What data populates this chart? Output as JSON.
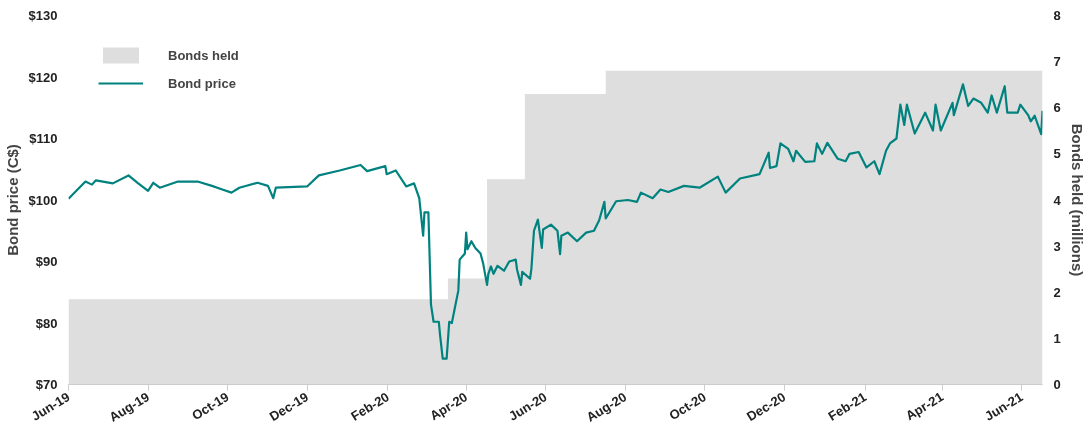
{
  "chart_data": {
    "type": "line",
    "ylabel": "Bond price (C$)",
    "y2label": "Bonds held (millions)",
    "xlim": [
      "2019-06-01",
      "2021-06-17"
    ],
    "xticks": [
      {
        "value": "2019-06-01",
        "label": "Jun-19"
      },
      {
        "value": "2019-08-01",
        "label": "Aug-19"
      },
      {
        "value": "2019-10-01",
        "label": "Oct-19"
      },
      {
        "value": "2019-12-01",
        "label": "Dec-19"
      },
      {
        "value": "2020-02-01",
        "label": "Feb-20"
      },
      {
        "value": "2020-04-01",
        "label": "Apr-20"
      },
      {
        "value": "2020-06-01",
        "label": "Jun-20"
      },
      {
        "value": "2020-08-01",
        "label": "Aug-20"
      },
      {
        "value": "2020-10-01",
        "label": "Oct-20"
      },
      {
        "value": "2020-12-01",
        "label": "Dec-20"
      },
      {
        "value": "2021-02-01",
        "label": "Feb-21"
      },
      {
        "value": "2021-04-01",
        "label": "Apr-21"
      },
      {
        "value": "2021-06-01",
        "label": "Jun-21"
      }
    ],
    "ylim": [
      70,
      130
    ],
    "yticks": [
      {
        "value": 70,
        "label": "$70"
      },
      {
        "value": 80,
        "label": "$80"
      },
      {
        "value": 90,
        "label": "$90"
      },
      {
        "value": 100,
        "label": "$100"
      },
      {
        "value": 110,
        "label": "$110"
      },
      {
        "value": 120,
        "label": "$120"
      },
      {
        "value": 130,
        "label": "$130"
      }
    ],
    "y2lim": [
      0,
      8
    ],
    "y2ticks": [
      0,
      1,
      2,
      3,
      4,
      5,
      6,
      7,
      8
    ],
    "grid": false,
    "legend": "top left",
    "line_style": "solid",
    "series": [
      {
        "name": "Bonds held",
        "type": "area",
        "axis": "y2",
        "color": "#dedede",
        "x": [
          "2019-06-01",
          "2020-03-18",
          "2020-03-18",
          "2020-04-17",
          "2020-04-17",
          "2020-05-16",
          "2020-05-16",
          "2020-07-17",
          "2020-07-17",
          "2021-06-17"
        ],
        "values": [
          1.85,
          1.85,
          2.3,
          2.3,
          4.45,
          4.45,
          6.3,
          6.3,
          6.8,
          6.8
        ]
      },
      {
        "name": "Bond price",
        "color": "#00827f",
        "x": [
          "2019-06-01",
          "2019-06-14",
          "2019-06-19",
          "2019-06-22",
          "2019-07-05",
          "2019-07-17",
          "2019-07-24",
          "2019-08-01",
          "2019-08-05",
          "2019-08-10",
          "2019-08-24",
          "2019-09-08",
          "2019-09-19",
          "2019-09-27",
          "2019-10-04",
          "2019-10-10",
          "2019-10-24",
          "2019-11-01",
          "2019-11-05",
          "2019-11-07",
          "2019-12-01",
          "2019-12-10",
          "2019-12-26",
          "2020-01-11",
          "2020-01-16",
          "2020-01-30",
          "2020-01-31",
          "2020-02-07",
          "2020-02-15",
          "2020-02-21",
          "2020-02-25",
          "2020-02-26",
          "2020-02-28",
          "2020-02-29",
          "2020-03-03",
          "2020-03-05",
          "2020-03-07",
          "2020-03-11",
          "2020-03-12",
          "2020-03-14",
          "2020-03-17",
          "2020-03-19",
          "2020-03-21",
          "2020-03-26",
          "2020-03-27",
          "2020-03-31",
          "2020-04-01",
          "2020-04-02",
          "2020-04-05",
          "2020-04-08",
          "2020-04-12",
          "2020-04-14",
          "2020-04-17",
          "2020-04-18",
          "2020-04-20",
          "2020-04-22",
          "2020-04-25",
          "2020-04-30",
          "2020-05-04",
          "2020-05-09",
          "2020-05-10",
          "2020-05-13",
          "2020-05-14",
          "2020-05-20",
          "2020-05-21",
          "2020-05-23",
          "2020-05-26",
          "2020-05-29",
          "2020-05-30",
          "2020-06-05",
          "2020-06-10",
          "2020-06-12",
          "2020-06-13",
          "2020-06-18",
          "2020-06-25",
          "2020-07-02",
          "2020-07-08",
          "2020-07-12",
          "2020-07-16",
          "2020-07-17",
          "2020-07-25",
          "2020-08-03",
          "2020-08-10",
          "2020-08-13",
          "2020-08-22",
          "2020-08-28",
          "2020-09-03",
          "2020-09-15",
          "2020-09-27",
          "2020-10-11",
          "2020-10-17",
          "2020-10-28",
          "2020-11-12",
          "2020-11-19",
          "2020-11-20",
          "2020-11-25",
          "2020-11-28",
          "2020-12-04",
          "2020-12-08",
          "2020-12-10",
          "2020-12-17",
          "2020-12-24",
          "2020-12-26",
          "2020-12-30",
          "2021-01-03",
          "2021-01-11",
          "2021-01-17",
          "2021-01-20",
          "2021-01-27",
          "2021-02-02",
          "2021-02-08",
          "2021-02-12",
          "2021-02-17",
          "2021-02-20",
          "2021-02-25",
          "2021-02-28",
          "2021-03-03",
          "2021-03-05",
          "2021-03-11",
          "2021-03-19",
          "2021-03-25",
          "2021-03-27",
          "2021-03-31",
          "2021-04-09",
          "2021-04-10",
          "2021-04-17",
          "2021-04-21",
          "2021-04-25",
          "2021-05-01",
          "2021-05-06",
          "2021-05-09",
          "2021-05-13",
          "2021-05-19",
          "2021-05-21",
          "2021-05-29",
          "2021-05-31",
          "2021-06-06",
          "2021-06-08",
          "2021-06-11",
          "2021-06-16",
          "2021-06-17"
        ],
        "values": [
          100.2,
          103.0,
          102.5,
          103.2,
          102.7,
          104.0,
          102.8,
          101.5,
          102.8,
          102.0,
          103.0,
          103.0,
          102.3,
          101.7,
          101.2,
          102.0,
          102.8,
          102.3,
          100.3,
          102.0,
          102.2,
          104.0,
          104.8,
          105.7,
          104.7,
          105.5,
          104.2,
          104.8,
          102.2,
          102.7,
          100.3,
          98.3,
          94.2,
          98.0,
          98.0,
          83.0,
          80.2,
          80.2,
          78.0,
          74.2,
          74.2,
          80.2,
          80.0,
          85.3,
          90.3,
          91.3,
          94.7,
          92.0,
          93.3,
          92.2,
          91.3,
          89.7,
          86.2,
          88.0,
          89.2,
          88.0,
          89.3,
          88.5,
          90.0,
          90.3,
          88.7,
          86.2,
          88.3,
          87.2,
          88.8,
          95.0,
          96.8,
          92.2,
          95.2,
          96.0,
          95.0,
          91.2,
          94.2,
          94.7,
          93.3,
          94.7,
          95.0,
          96.7,
          99.7,
          97.0,
          99.8,
          100.0,
          99.7,
          101.2,
          100.3,
          101.7,
          101.3,
          102.3,
          102.0,
          103.8,
          101.2,
          103.5,
          104.2,
          107.7,
          105.2,
          105.5,
          109.2,
          108.3,
          106.3,
          108.0,
          106.2,
          106.3,
          109.2,
          107.5,
          109.3,
          106.7,
          106.3,
          107.5,
          107.8,
          105.3,
          106.3,
          104.2,
          108.0,
          109.2,
          110.0,
          115.5,
          112.2,
          115.5,
          110.8,
          114.2,
          111.3,
          115.5,
          111.3,
          115.8,
          113.8,
          118.8,
          115.3,
          116.5,
          115.8,
          114.2,
          117.0,
          114.2,
          118.5,
          114.2,
          114.2,
          115.5,
          113.8,
          112.8,
          113.7,
          110.7,
          114.5
        ]
      }
    ]
  }
}
